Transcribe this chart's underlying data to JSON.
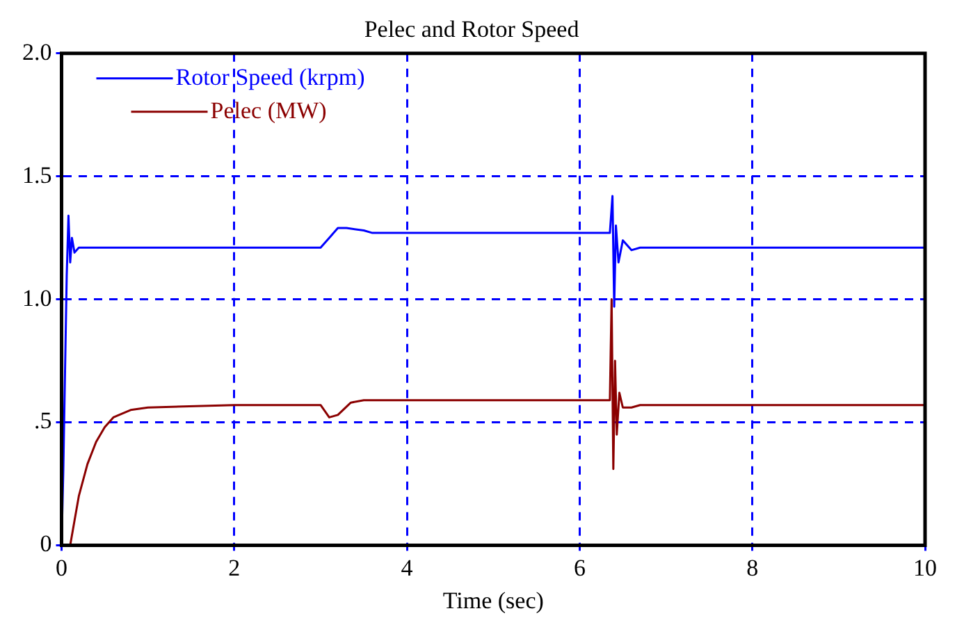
{
  "chart_data": {
    "type": "line",
    "title": "Pelec and Rotor Speed",
    "xlabel": "Time (sec)",
    "xlim": [
      0,
      10
    ],
    "xticks": [
      0,
      2,
      4,
      6,
      8,
      10
    ],
    "ylim": [
      0,
      2
    ],
    "yticks": [
      0,
      {
        "value": 0.5,
        "label": ".5"
      },
      {
        "value": 1,
        "label": "1.0"
      },
      {
        "value": 1.5,
        "label": "1.5"
      },
      {
        "value": 2,
        "label": "2.0"
      }
    ],
    "grid": true,
    "legend": "top left",
    "marker": "none",
    "line_style": "solid",
    "series": [
      {
        "name": "Rotor Speed (krpm)",
        "color": "#0000ff",
        "x": [
          0,
          0.02,
          0.04,
          0.06,
          0.08,
          0.1,
          0.12,
          0.15,
          0.2,
          0.3,
          3.0,
          3.1,
          3.2,
          3.3,
          3.5,
          3.6,
          6.35,
          6.38,
          6.4,
          6.42,
          6.45,
          6.5,
          6.6,
          6.7,
          10
        ],
        "values": [
          0,
          0.3,
          0.7,
          1.1,
          1.34,
          1.15,
          1.25,
          1.19,
          1.21,
          1.21,
          1.21,
          1.25,
          1.29,
          1.29,
          1.28,
          1.27,
          1.27,
          1.42,
          0.97,
          1.3,
          1.15,
          1.24,
          1.2,
          1.21,
          1.21
        ]
      },
      {
        "name": "Pelec (MW)",
        "color": "#8b0000",
        "x": [
          0,
          0.1,
          0.15,
          0.2,
          0.3,
          0.4,
          0.5,
          0.6,
          0.8,
          1.0,
          2.0,
          3.0,
          3.1,
          3.2,
          3.35,
          3.5,
          6.35,
          6.37,
          6.39,
          6.41,
          6.43,
          6.46,
          6.5,
          6.6,
          6.7,
          10
        ],
        "values": [
          0,
          0,
          0.1,
          0.2,
          0.33,
          0.42,
          0.48,
          0.52,
          0.55,
          0.56,
          0.57,
          0.57,
          0.52,
          0.53,
          0.58,
          0.59,
          0.59,
          1.0,
          0.31,
          0.75,
          0.45,
          0.62,
          0.56,
          0.56,
          0.57,
          0.57
        ]
      }
    ]
  }
}
